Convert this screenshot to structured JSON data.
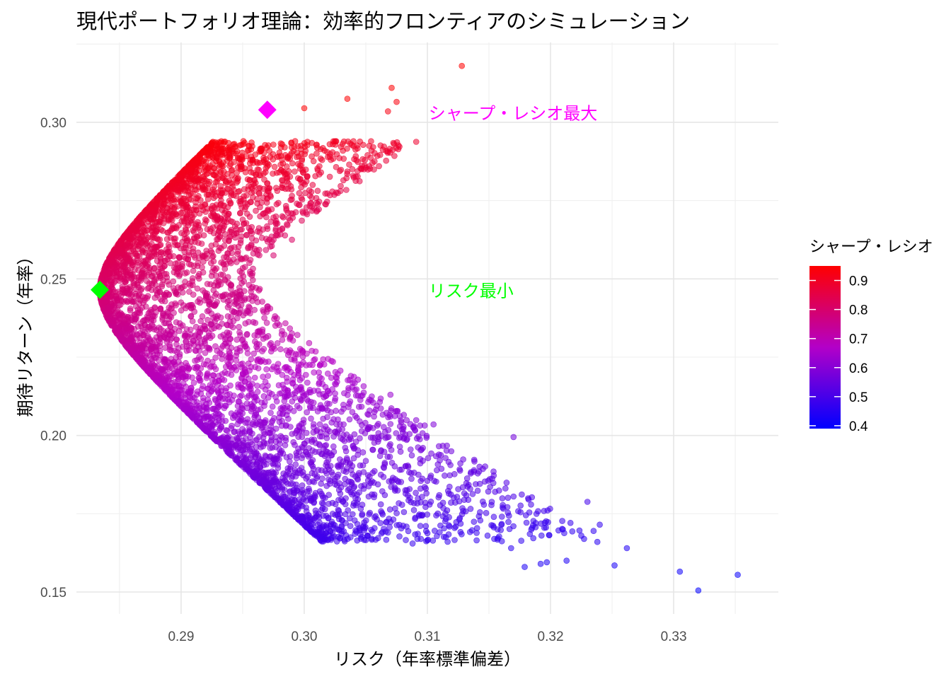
{
  "chart_data": {
    "type": "scatter",
    "title": "現代ポートフォリオ理論：効率的フロンティアのシミュレーション",
    "xlabel": "リスク（年率標準偏差）",
    "ylabel": "期待リターン（年率）",
    "xlim": [
      0.2815,
      0.3385
    ],
    "ylim": [
      0.143,
      0.3255
    ],
    "x_ticks": [
      0.29,
      0.3,
      0.31,
      0.32,
      0.33
    ],
    "x_tick_labels": [
      "0.29",
      "0.30",
      "0.31",
      "0.32",
      "0.33"
    ],
    "y_ticks": [
      0.15,
      0.2,
      0.25,
      0.3
    ],
    "y_tick_labels": [
      "0.15",
      "0.20",
      "0.25",
      "0.30"
    ],
    "grid": true,
    "legend": {
      "title": "シャープ・レシオ",
      "placement": "right",
      "ticks": [
        0.4,
        0.5,
        0.6,
        0.7,
        0.8,
        0.9
      ],
      "tick_labels": [
        "0.4",
        "0.5",
        "0.6",
        "0.7",
        "0.8",
        "0.9"
      ],
      "range": [
        0.39,
        0.95
      ],
      "color_low": "#0000FF",
      "color_high": "#FF0000"
    },
    "frontier": {
      "description_points": [
        {
          "x": 0.2834,
          "y": 0.2465
        },
        {
          "x": 0.287,
          "y": 0.276
        },
        {
          "x": 0.2925,
          "y": 0.2935
        },
        {
          "x": 0.287,
          "y": 0.213
        },
        {
          "x": 0.296,
          "y": 0.182
        },
        {
          "x": 0.304,
          "y": 0.17
        }
      ]
    },
    "outlier_points": [
      {
        "x": 0.3128,
        "y": 0.318
      },
      {
        "x": 0.3071,
        "y": 0.311
      },
      {
        "x": 0.3075,
        "y": 0.3065
      },
      {
        "x": 0.3068,
        "y": 0.3035
      },
      {
        "x": 0.3035,
        "y": 0.3075
      },
      {
        "x": 0.3,
        "y": 0.3045
      },
      {
        "x": 0.305,
        "y": 0.2855
      },
      {
        "x": 0.301,
        "y": 0.29
      },
      {
        "x": 0.299,
        "y": 0.2765
      },
      {
        "x": 0.301,
        "y": 0.2715
      },
      {
        "x": 0.298,
        "y": 0.2655
      },
      {
        "x": 0.299,
        "y": 0.2625
      },
      {
        "x": 0.2975,
        "y": 0.2575
      },
      {
        "x": 0.293,
        "y": 0.248
      },
      {
        "x": 0.2915,
        "y": 0.2435
      },
      {
        "x": 0.296,
        "y": 0.23
      },
      {
        "x": 0.3025,
        "y": 0.2165
      },
      {
        "x": 0.3045,
        "y": 0.2045
      },
      {
        "x": 0.3057,
        "y": 0.2075
      },
      {
        "x": 0.307,
        "y": 0.213
      },
      {
        "x": 0.308,
        "y": 0.201
      },
      {
        "x": 0.3105,
        "y": 0.2035
      },
      {
        "x": 0.317,
        "y": 0.1995
      },
      {
        "x": 0.3142,
        "y": 0.1885
      },
      {
        "x": 0.31,
        "y": 0.1855
      },
      {
        "x": 0.313,
        "y": 0.1815
      },
      {
        "x": 0.3155,
        "y": 0.182
      },
      {
        "x": 0.317,
        "y": 0.1805
      },
      {
        "x": 0.318,
        "y": 0.1745
      },
      {
        "x": 0.3188,
        "y": 0.172
      },
      {
        "x": 0.323,
        "y": 0.1788
      },
      {
        "x": 0.3195,
        "y": 0.1705
      },
      {
        "x": 0.321,
        "y": 0.17
      },
      {
        "x": 0.3225,
        "y": 0.168
      },
      {
        "x": 0.3235,
        "y": 0.1695
      },
      {
        "x": 0.324,
        "y": 0.1715
      },
      {
        "x": 0.3238,
        "y": 0.166
      },
      {
        "x": 0.3262,
        "y": 0.164
      },
      {
        "x": 0.3252,
        "y": 0.1585
      },
      {
        "x": 0.3213,
        "y": 0.16
      },
      {
        "x": 0.3197,
        "y": 0.1595
      },
      {
        "x": 0.3192,
        "y": 0.159
      },
      {
        "x": 0.3179,
        "y": 0.158
      },
      {
        "x": 0.3305,
        "y": 0.1565
      },
      {
        "x": 0.332,
        "y": 0.1505
      },
      {
        "x": 0.3352,
        "y": 0.1555
      },
      {
        "x": 0.3168,
        "y": 0.164
      },
      {
        "x": 0.3157,
        "y": 0.17
      },
      {
        "x": 0.314,
        "y": 0.1665
      },
      {
        "x": 0.3115,
        "y": 0.1675
      },
      {
        "x": 0.31,
        "y": 0.1665
      },
      {
        "x": 0.3088,
        "y": 0.1655
      },
      {
        "x": 0.3068,
        "y": 0.169
      },
      {
        "x": 0.3045,
        "y": 0.17
      }
    ],
    "highlights": [
      {
        "name": "シャープ・レシオ最大",
        "x": 0.297,
        "y": 0.304,
        "color": "#FF00FF"
      },
      {
        "name": "リスク最小",
        "x": 0.2834,
        "y": 0.2465,
        "color": "#00FF00"
      }
    ],
    "annotations": [
      {
        "text": "シャープ・レシオ最大",
        "x": 0.3101,
        "y": 0.303,
        "color": "#FF00FF"
      },
      {
        "text": "リスク最小",
        "x": 0.3101,
        "y": 0.2463,
        "color": "#00FF00"
      }
    ]
  }
}
